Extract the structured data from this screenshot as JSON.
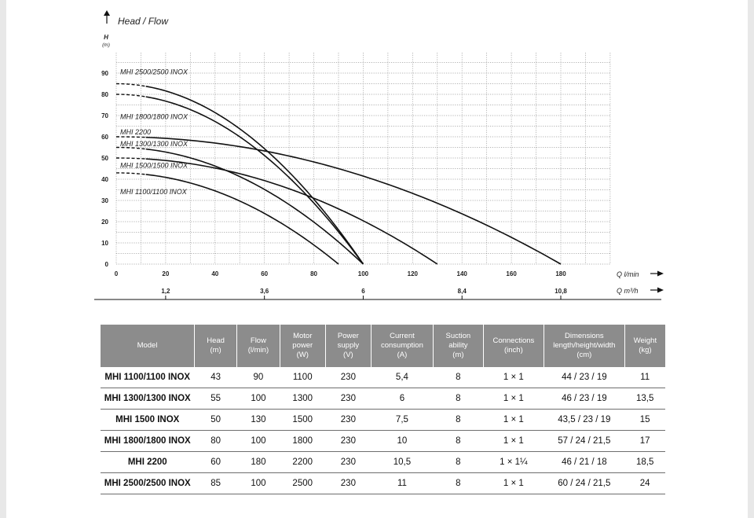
{
  "chart_data": {
    "type": "line",
    "title": "Head / Flow",
    "ylabel": "H",
    "ylabel_unit": "(m)",
    "xlabel": "Q l/min",
    "xlabel2": "Q m³/h",
    "xlim": [
      0,
      200
    ],
    "ylim": [
      0,
      100
    ],
    "grid": true,
    "x_ticks": [
      "0",
      "20",
      "40",
      "60",
      "80",
      "100",
      "120",
      "140",
      "160",
      "180"
    ],
    "y_ticks": [
      "0",
      "10",
      "20",
      "30",
      "40",
      "50",
      "60",
      "70",
      "80",
      "90"
    ],
    "x2_ticks": [
      {
        "label": "1,2",
        "at": 20
      },
      {
        "label": "3,6",
        "at": 60
      },
      {
        "label": "6",
        "at": 100
      },
      {
        "label": "8,4",
        "at": 140
      },
      {
        "label": "10,8",
        "at": 180
      }
    ],
    "series": [
      {
        "name": "MHI 2500/2500 INOX",
        "shutoff": 85,
        "max_flow": 100
      },
      {
        "name": "MHI 1800/1800 INOX",
        "shutoff": 80,
        "max_flow": 100
      },
      {
        "name": "MHI 2200",
        "shutoff": 60,
        "max_flow": 180
      },
      {
        "name": "MHI 1300/1300 INOX",
        "shutoff": 55,
        "max_flow": 100
      },
      {
        "name": "MHI 1500/1500 INOX",
        "shutoff": 50,
        "max_flow": 130
      },
      {
        "name": "MHI 1100/1100 INOX",
        "shutoff": 43,
        "max_flow": 90
      }
    ]
  },
  "table": {
    "headers": [
      [
        "Model"
      ],
      [
        "Head",
        "(m)"
      ],
      [
        "Flow",
        "(l/min)"
      ],
      [
        "Motor",
        "power",
        "(W)"
      ],
      [
        "Power",
        "supply",
        "(V)"
      ],
      [
        "Current",
        "consumption",
        "(A)"
      ],
      [
        "Suction",
        "ability",
        "(m)"
      ],
      [
        "Connections",
        "(inch)"
      ],
      [
        "Dimensions",
        "length/height/width",
        "(cm)"
      ],
      [
        "Weight",
        "(kg)"
      ]
    ],
    "rows": [
      [
        "MHI 1100/1100 INOX",
        "43",
        "90",
        "1100",
        "230",
        "5,4",
        "8",
        "1 × 1",
        "44 / 23 / 19",
        "11"
      ],
      [
        "MHI 1300/1300 INOX",
        "55",
        "100",
        "1300",
        "230",
        "6",
        "8",
        "1 × 1",
        "46 / 23 / 19",
        "13,5"
      ],
      [
        "MHI 1500 INOX",
        "50",
        "130",
        "1500",
        "230",
        "7,5",
        "8",
        "1 × 1",
        "43,5 / 23 / 19",
        "15"
      ],
      [
        "MHI 1800/1800 INOX",
        "80",
        "100",
        "1800",
        "230",
        "10",
        "8",
        "1 × 1",
        "57 / 24 / 21,5",
        "17"
      ],
      [
        "MHI 2200",
        "60",
        "180",
        "2200",
        "230",
        "10,5",
        "8",
        "1 × 1¼",
        "46 / 21 / 18",
        "18,5"
      ],
      [
        "MHI 2500/2500 INOX",
        "85",
        "100",
        "2500",
        "230",
        "11",
        "8",
        "1 × 1",
        "60 / 24 / 21,5",
        "24"
      ]
    ]
  }
}
